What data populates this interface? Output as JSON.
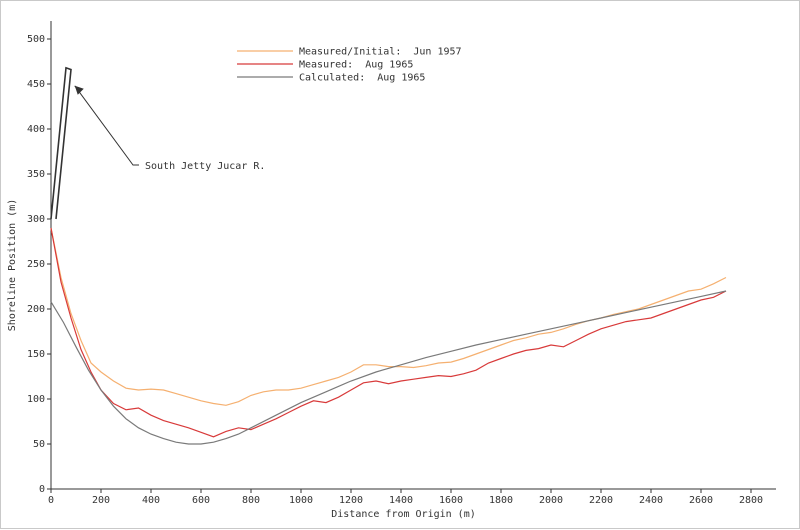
{
  "chart_data": {
    "type": "line",
    "xlabel": "Distance from Origin (m)",
    "ylabel": "Shoreline Position (m)",
    "xlim": [
      0,
      2900
    ],
    "ylim": [
      0,
      520
    ],
    "x_ticks": [
      0,
      200,
      400,
      600,
      800,
      1000,
      1200,
      1400,
      1600,
      1800,
      2000,
      2200,
      2400,
      2600,
      2800
    ],
    "y_ticks": [
      0,
      50,
      100,
      150,
      200,
      250,
      300,
      350,
      400,
      450,
      500
    ],
    "grid": false,
    "legend_position": "top-center",
    "series": [
      {
        "name": "Measured/Initial:  Jun 1957",
        "color": "#f5b070",
        "x": [
          0,
          40,
          80,
          120,
          160,
          200,
          250,
          300,
          350,
          400,
          450,
          500,
          550,
          600,
          650,
          700,
          750,
          800,
          850,
          900,
          950,
          1000,
          1050,
          1100,
          1150,
          1200,
          1250,
          1300,
          1350,
          1400,
          1450,
          1500,
          1550,
          1600,
          1650,
          1700,
          1750,
          1800,
          1850,
          1900,
          1950,
          2000,
          2050,
          2100,
          2150,
          2200,
          2250,
          2300,
          2350,
          2400,
          2450,
          2500,
          2550,
          2600,
          2650,
          2700
        ],
        "y": [
          290,
          235,
          195,
          165,
          140,
          130,
          120,
          112,
          110,
          111,
          110,
          106,
          102,
          98,
          95,
          93,
          97,
          104,
          108,
          110,
          110,
          112,
          116,
          120,
          124,
          130,
          138,
          138,
          136,
          136,
          135,
          137,
          140,
          141,
          145,
          150,
          155,
          160,
          165,
          168,
          172,
          174,
          178,
          183,
          187,
          190,
          194,
          197,
          200,
          205,
          210,
          215,
          220,
          222,
          228,
          235
        ]
      },
      {
        "name": "Measured:  Aug 1965",
        "color": "#d83a3a",
        "x": [
          0,
          40,
          80,
          120,
          160,
          200,
          250,
          300,
          350,
          400,
          450,
          500,
          550,
          600,
          650,
          700,
          750,
          800,
          850,
          900,
          950,
          1000,
          1050,
          1100,
          1150,
          1200,
          1250,
          1300,
          1350,
          1400,
          1450,
          1500,
          1550,
          1600,
          1650,
          1700,
          1750,
          1800,
          1850,
          1900,
          1950,
          2000,
          2050,
          2100,
          2150,
          2200,
          2250,
          2300,
          2350,
          2400,
          2450,
          2500,
          2550,
          2600,
          2650,
          2700
        ],
        "y": [
          290,
          230,
          190,
          155,
          130,
          110,
          95,
          88,
          90,
          82,
          76,
          72,
          68,
          63,
          58,
          64,
          68,
          66,
          72,
          78,
          85,
          92,
          98,
          96,
          102,
          110,
          118,
          120,
          117,
          120,
          122,
          124,
          126,
          125,
          128,
          132,
          140,
          145,
          150,
          154,
          156,
          160,
          158,
          165,
          172,
          178,
          182,
          186,
          188,
          190,
          195,
          200,
          205,
          210,
          213,
          220
        ]
      },
      {
        "name": "Calculated:  Aug 1965",
        "color": "#7a7a7a",
        "x": [
          0,
          50,
          100,
          150,
          200,
          250,
          300,
          350,
          400,
          450,
          500,
          550,
          600,
          650,
          700,
          750,
          800,
          900,
          1000,
          1100,
          1200,
          1300,
          1400,
          1500,
          1600,
          1700,
          1800,
          1900,
          2000,
          2100,
          2200,
          2300,
          2400,
          2500,
          2600,
          2700
        ],
        "y": [
          208,
          185,
          158,
          132,
          110,
          92,
          78,
          68,
          61,
          56,
          52,
          50,
          50,
          52,
          56,
          61,
          68,
          82,
          96,
          108,
          120,
          130,
          138,
          146,
          153,
          160,
          166,
          172,
          178,
          184,
          190,
          196,
          202,
          208,
          214,
          220
        ]
      }
    ],
    "annotation": {
      "text": "South Jetty Jucar R."
    }
  }
}
